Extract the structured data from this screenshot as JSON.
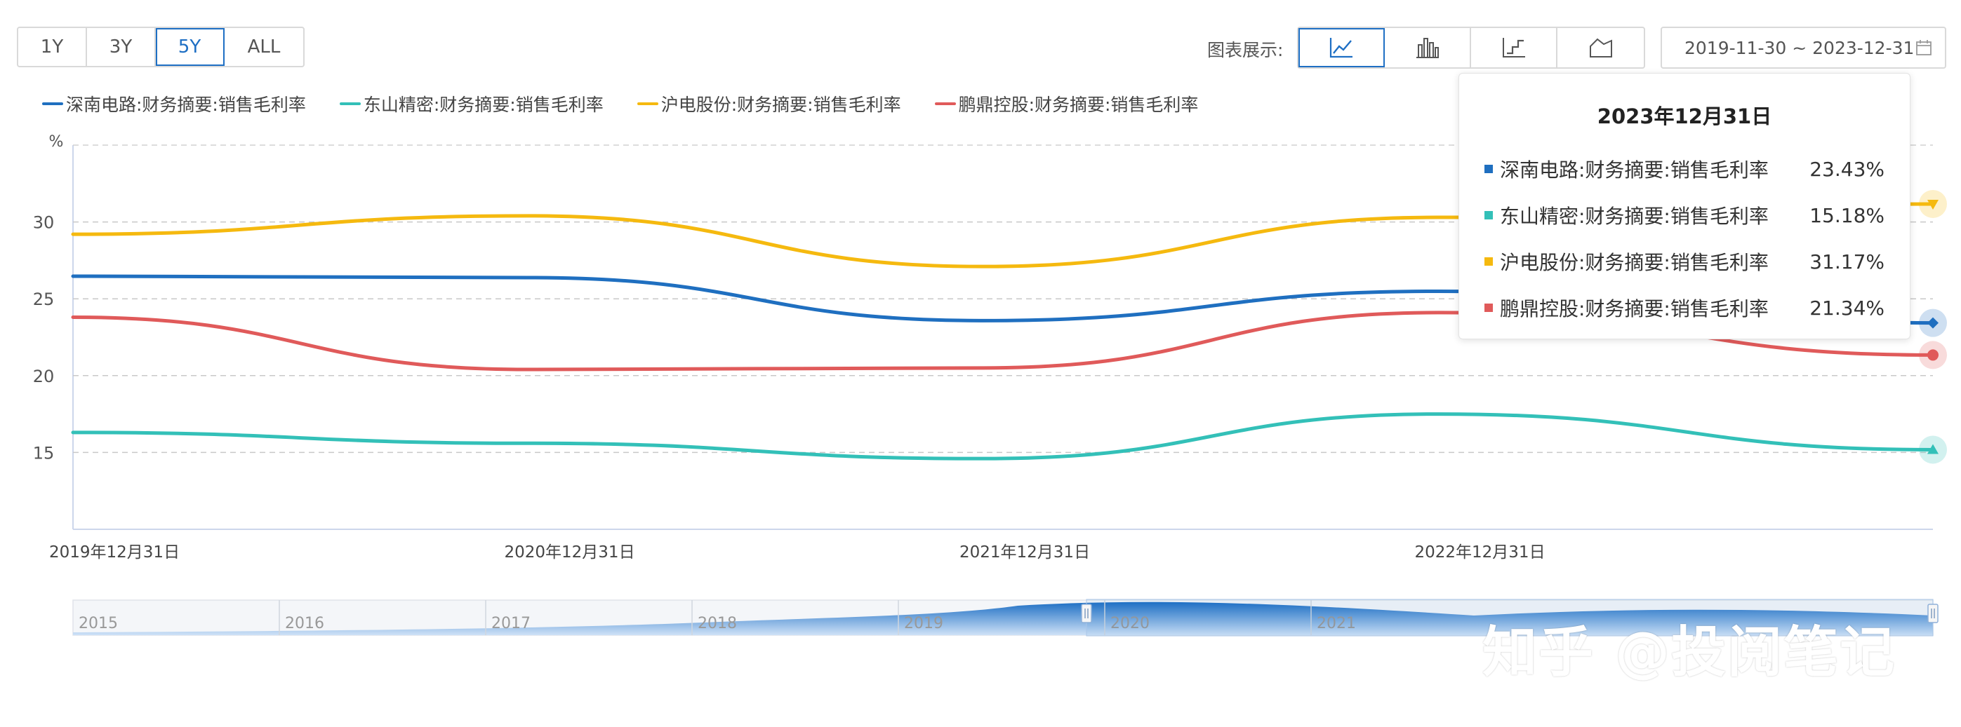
{
  "toolbar": {
    "ranges": [
      "1Y",
      "3Y",
      "5Y",
      "ALL"
    ],
    "active_range": "5Y",
    "chart_type_label": "图表展示:",
    "chart_types": [
      {
        "icon": "line-chart-icon"
      },
      {
        "icon": "bar-chart-icon"
      },
      {
        "icon": "step-chart-icon"
      },
      {
        "icon": "area-chart-icon"
      }
    ],
    "date_range": "2019-11-30 ~ 2023-12-31"
  },
  "tooltip": {
    "title": "2023年12月31日",
    "rows": [
      {
        "name": "深南电路:财务摘要:销售毛利率",
        "value": "23.43%",
        "color": "#1f6fc0"
      },
      {
        "name": "东山精密:财务摘要:销售毛利率",
        "value": "15.18%",
        "color": "#33c0b8"
      },
      {
        "name": "沪电股份:财务摘要:销售毛利率",
        "value": "31.17%",
        "color": "#f5b90f"
      },
      {
        "name": "鹏鼎控股:财务摘要:销售毛利率",
        "value": "21.34%",
        "color": "#e05a5a"
      }
    ]
  },
  "navigator": {
    "years": [
      "2015",
      "2016",
      "2017",
      "2018",
      "2019",
      "2020",
      "2021"
    ]
  },
  "watermark": "知乎 @投阅笔记",
  "chart_data": {
    "type": "line",
    "x": [
      "2019年12月31日",
      "2020年12月31日",
      "2021年12月31日",
      "2022年12月31日",
      "2023年12月31日"
    ],
    "ylabel": "%",
    "yticks": [
      15,
      20,
      25,
      30
    ],
    "ylim": [
      10,
      35
    ],
    "grid": true,
    "legend_position": "top-left",
    "series": [
      {
        "name": "深南电路:财务摘要:销售毛利率",
        "color": "#1f6fc0",
        "marker": "diamond",
        "values": [
          26.47,
          26.38,
          23.58,
          25.49,
          23.43
        ]
      },
      {
        "name": "东山精密:财务摘要:销售毛利率",
        "color": "#33c0b8",
        "marker": "triangle",
        "values": [
          16.3,
          15.6,
          14.6,
          17.5,
          15.18
        ]
      },
      {
        "name": "沪电股份:财务摘要:销售毛利率",
        "color": "#f5b90f",
        "marker": "triangle-down",
        "values": [
          29.2,
          30.4,
          27.1,
          30.3,
          31.17
        ]
      },
      {
        "name": "鹏鼎控股:财务摘要:销售毛利率",
        "color": "#e05a5a",
        "marker": "circle",
        "values": [
          23.8,
          20.4,
          20.5,
          24.1,
          21.34
        ]
      }
    ]
  }
}
